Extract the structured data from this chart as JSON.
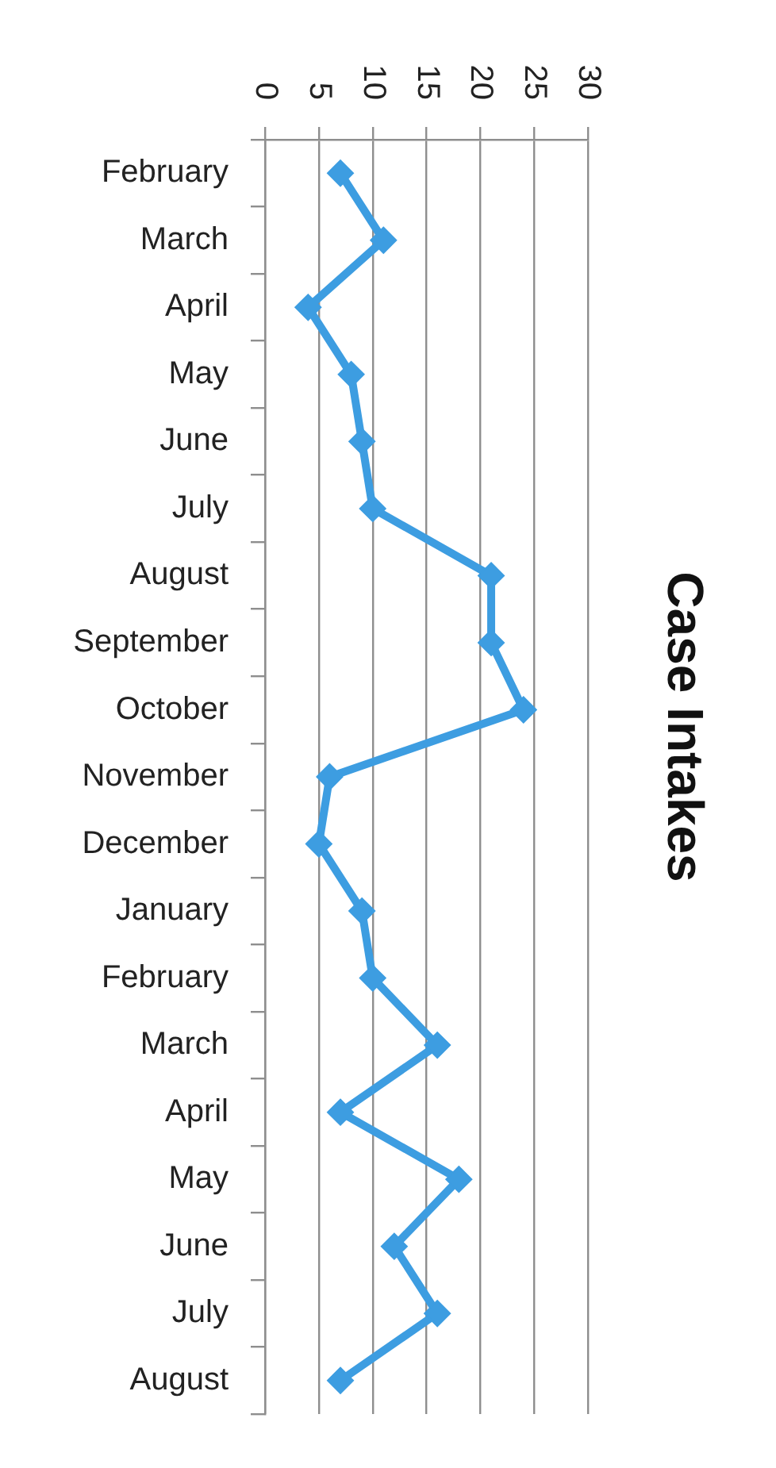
{
  "chart_data": {
    "type": "line",
    "title": "Case Intakes",
    "orientation": "horizontal",
    "categories": [
      "February",
      "March",
      "April",
      "May",
      "June",
      "July",
      "August",
      "September",
      "October",
      "November",
      "December",
      "January",
      "February",
      "March",
      "April",
      "May",
      "June",
      "July",
      "August"
    ],
    "values": [
      7,
      11,
      4,
      8,
      9,
      10,
      21,
      21,
      24,
      6,
      5,
      9,
      10,
      16,
      7,
      18,
      12,
      16,
      7
    ],
    "color": "#3d9de1",
    "xlim": [
      0,
      30
    ],
    "xticks": [
      0,
      5,
      10,
      15,
      20,
      25,
      30
    ],
    "grid": "x",
    "marker": "diamond"
  }
}
